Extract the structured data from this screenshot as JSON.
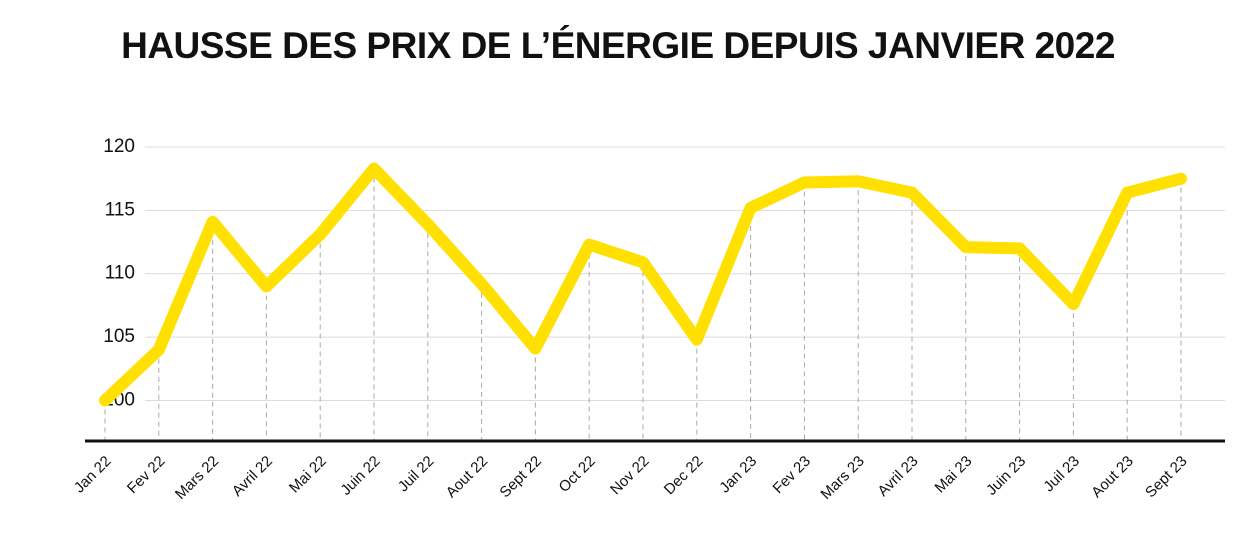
{
  "chart_data": {
    "type": "line",
    "title": "HAUSSE DES PRIX DE L’ÉNERGIE DEPUIS JANVIER 2022",
    "categories": [
      "Jan 22",
      "Fev 22",
      "Mars 22",
      "Avril 22",
      "Mai 22",
      "Juin 22",
      "Juil 22",
      "Aout 22",
      "Sept 22",
      "Oct 22",
      "Nov 22",
      "Dec 22",
      "Jan 23",
      "Fev 23",
      "Mars 23",
      "Avril 23",
      "Mai 23",
      "Juin 23",
      "Juil 23",
      "Aout 23",
      "Sept 23"
    ],
    "values": [
      100,
      104,
      114.1,
      109,
      113.1,
      118.3,
      113.9,
      109.2,
      104.1,
      112.3,
      110.9,
      104.8,
      115.2,
      117.2,
      117.3,
      116.4,
      112.1,
      112,
      107.6,
      116.4,
      117.5
    ],
    "color": "#ffe000",
    "ylim": [
      96.8,
      120
    ],
    "yticks": [
      100,
      105,
      110,
      115,
      120
    ],
    "grid": true
  }
}
